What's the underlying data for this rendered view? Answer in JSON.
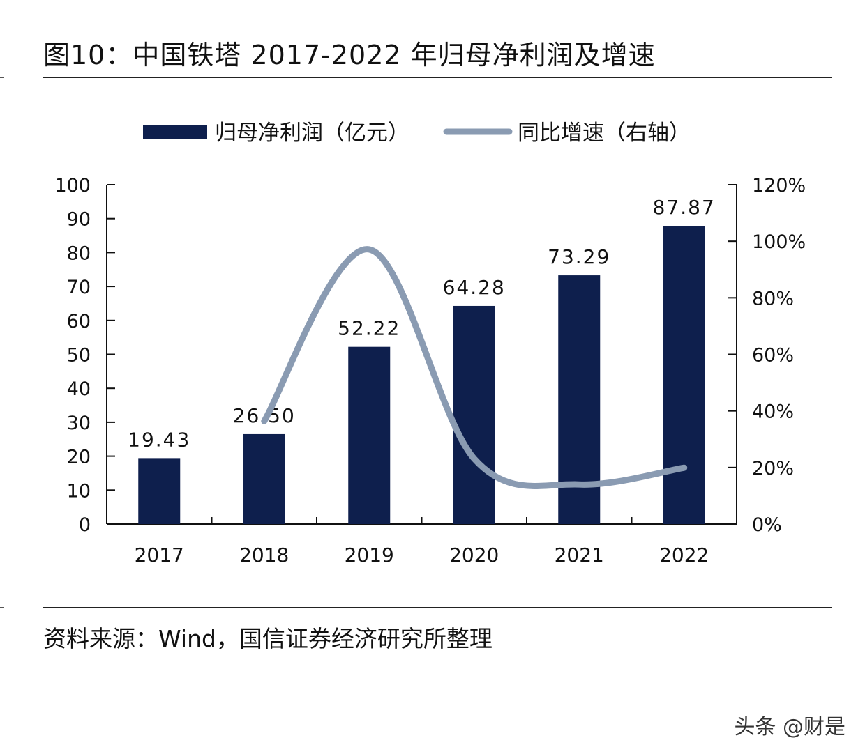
{
  "title": "图10：中国铁塔 2017-2022 年归母净利润及增速",
  "source": "资料来源：Wind，国信证券经济研究所整理",
  "watermark": "头条 @财是",
  "colors": {
    "bar": "#0e1f4d",
    "line": "#8a9bb2",
    "axis": "#111111"
  },
  "chart_data": {
    "type": "bar",
    "categories": [
      "2017",
      "2018",
      "2019",
      "2020",
      "2021",
      "2022"
    ],
    "series": [
      {
        "name": "归母净利润（亿元）",
        "type": "bar",
        "axis": "left",
        "values": [
          19.43,
          26.5,
          52.22,
          64.28,
          73.29,
          87.87
        ],
        "labels": [
          "19.43",
          "26.50",
          "52.22",
          "64.28",
          "73.29",
          "87.87"
        ]
      },
      {
        "name": "同比增速（右轴）",
        "type": "line",
        "axis": "right",
        "smooth": true,
        "x": [
          "2018",
          "2019",
          "2020",
          "2021",
          "2022"
        ],
        "values": [
          36.4,
          97.1,
          23.1,
          14.0,
          19.9
        ]
      }
    ],
    "y_left": {
      "min": 0,
      "max": 100,
      "step": 10,
      "ticks": [
        "0",
        "10",
        "20",
        "30",
        "40",
        "50",
        "60",
        "70",
        "80",
        "90",
        "100"
      ]
    },
    "y_right": {
      "min": 0,
      "max": 120,
      "step": 20,
      "ticks": [
        "0%",
        "20%",
        "40%",
        "60%",
        "80%",
        "100%",
        "120%"
      ]
    },
    "legend": "top-center",
    "grid": false
  }
}
